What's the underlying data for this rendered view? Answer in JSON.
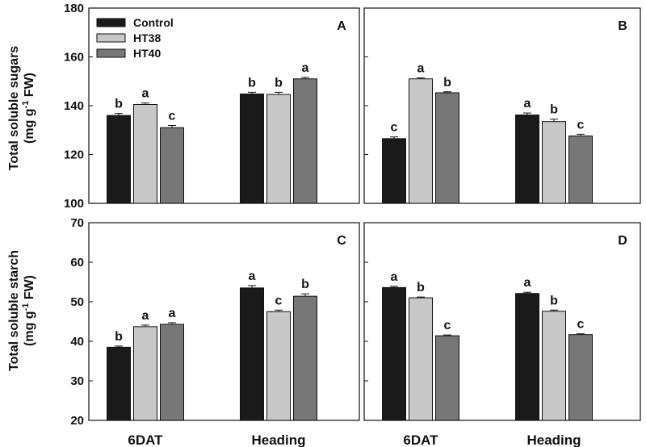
{
  "chart_data": [
    {
      "panel": "A",
      "type": "bar",
      "ylabel": "Total soluble sugars (mg g-1 FW)",
      "ylim": [
        100,
        180
      ],
      "yticks": [
        100,
        120,
        140,
        160,
        180
      ],
      "categories": [
        "6DAT",
        "Heading"
      ],
      "series": [
        {
          "name": "Control",
          "values": [
            136,
            144.8
          ],
          "errors": [
            0.8,
            0.7
          ],
          "letters": [
            "b",
            "b"
          ]
        },
        {
          "name": "HT38",
          "values": [
            140.5,
            144.6
          ],
          "errors": [
            0.6,
            0.9
          ],
          "letters": [
            "a",
            "b"
          ]
        },
        {
          "name": "HT40",
          "values": [
            131,
            151
          ],
          "errors": [
            0.9,
            0.6
          ],
          "letters": [
            "c",
            "a"
          ]
        }
      ]
    },
    {
      "panel": "B",
      "type": "bar",
      "ylabel": "",
      "ylim": [
        100,
        180
      ],
      "yticks": [
        100,
        120,
        140,
        160,
        180
      ],
      "categories": [
        "6DAT",
        "Heading"
      ],
      "series": [
        {
          "name": "Control",
          "values": [
            126.5,
            136.2
          ],
          "errors": [
            0.7,
            0.8
          ],
          "letters": [
            "c",
            "a"
          ]
        },
        {
          "name": "HT38",
          "values": [
            151,
            133.5
          ],
          "errors": [
            0.4,
            1.0
          ],
          "letters": [
            "a",
            "b"
          ]
        },
        {
          "name": "HT40",
          "values": [
            145.3,
            127.6
          ],
          "errors": [
            0.4,
            0.7
          ],
          "letters": [
            "b",
            "c"
          ]
        }
      ]
    },
    {
      "panel": "C",
      "type": "bar",
      "ylabel": "Total soluble starch (mg g-1 FW)",
      "ylim": [
        20,
        70
      ],
      "yticks": [
        20,
        30,
        40,
        50,
        60,
        70
      ],
      "categories": [
        "6DAT",
        "Heading"
      ],
      "series": [
        {
          "name": "Control",
          "values": [
            38.5,
            53.5
          ],
          "errors": [
            0.3,
            0.6
          ],
          "letters": [
            "b",
            "a"
          ]
        },
        {
          "name": "HT38",
          "values": [
            43.7,
            47.5
          ],
          "errors": [
            0.4,
            0.4
          ],
          "letters": [
            "a",
            "c"
          ]
        },
        {
          "name": "HT40",
          "values": [
            44.3,
            51.4
          ],
          "errors": [
            0.4,
            0.6
          ],
          "letters": [
            "a",
            "b"
          ]
        }
      ]
    },
    {
      "panel": "D",
      "type": "bar",
      "ylabel": "",
      "ylim": [
        20,
        70
      ],
      "yticks": [
        20,
        30,
        40,
        50,
        60,
        70
      ],
      "categories": [
        "6DAT",
        "Heading"
      ],
      "series": [
        {
          "name": "Control",
          "values": [
            53.6,
            52.1
          ],
          "errors": [
            0.3,
            0.3
          ],
          "letters": [
            "a",
            "a"
          ]
        },
        {
          "name": "HT38",
          "values": [
            51,
            47.6
          ],
          "errors": [
            0.2,
            0.3
          ],
          "letters": [
            "b",
            "b"
          ]
        },
        {
          "name": "HT40",
          "values": [
            41.4,
            41.7
          ],
          "errors": [
            0.2,
            0.2
          ],
          "letters": [
            "c",
            "c"
          ]
        }
      ]
    }
  ],
  "legend": {
    "entries": [
      "Control",
      "HT38",
      "HT40"
    ],
    "placement": "top-left of panel A"
  },
  "colors": {
    "Control": "#1a1a1a",
    "HT38": "#c8c8c8",
    "HT40": "#777777"
  },
  "ylabels": {
    "sugars_line1": "Total soluble sugars",
    "sugars_line2_pre": "(mg g",
    "sugars_sup": "-1",
    "sugars_line2_post": " FW)",
    "starch_line1": "Total soluble starch",
    "starch_line2_pre": "(mg g",
    "starch_sup": "-1",
    "starch_line2_post": " FW)"
  }
}
